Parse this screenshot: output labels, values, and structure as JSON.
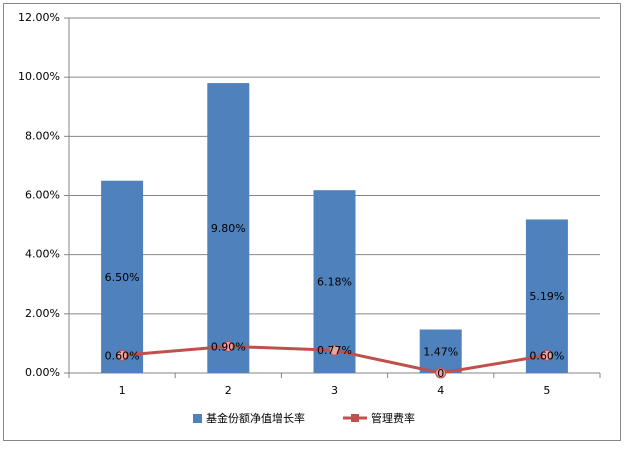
{
  "chart_data": {
    "type": "combo",
    "categories": [
      "1",
      "2",
      "3",
      "4",
      "5"
    ],
    "series": [
      {
        "name": "基金份额净值增长率",
        "type": "bar",
        "color": "#4f81bd",
        "values": [
          6.5,
          9.8,
          6.18,
          1.47,
          5.19
        ],
        "value_labels": [
          "6.50%",
          "9.80%",
          "6.18%",
          "1.47%",
          "5.19%"
        ]
      },
      {
        "name": "管理费率",
        "type": "line",
        "color": "#c0504d",
        "values": [
          0.6,
          0.9,
          0.77,
          0,
          0.6
        ],
        "value_labels": [
          "0.60%",
          "0.90%",
          "0.77%",
          "0",
          "0.60%"
        ]
      }
    ],
    "ylim": [
      0,
      12
    ],
    "yticks": [
      {
        "value": 0,
        "label": "0.00%"
      },
      {
        "value": 2,
        "label": "2.00%"
      },
      {
        "value": 4,
        "label": "4.00%"
      },
      {
        "value": 6,
        "label": "6.00%"
      },
      {
        "value": 8,
        "label": "8.00%"
      },
      {
        "value": 10,
        "label": "10.00%"
      },
      {
        "value": 12,
        "label": "12.00%"
      }
    ],
    "grid": true,
    "legend": "bottom"
  }
}
